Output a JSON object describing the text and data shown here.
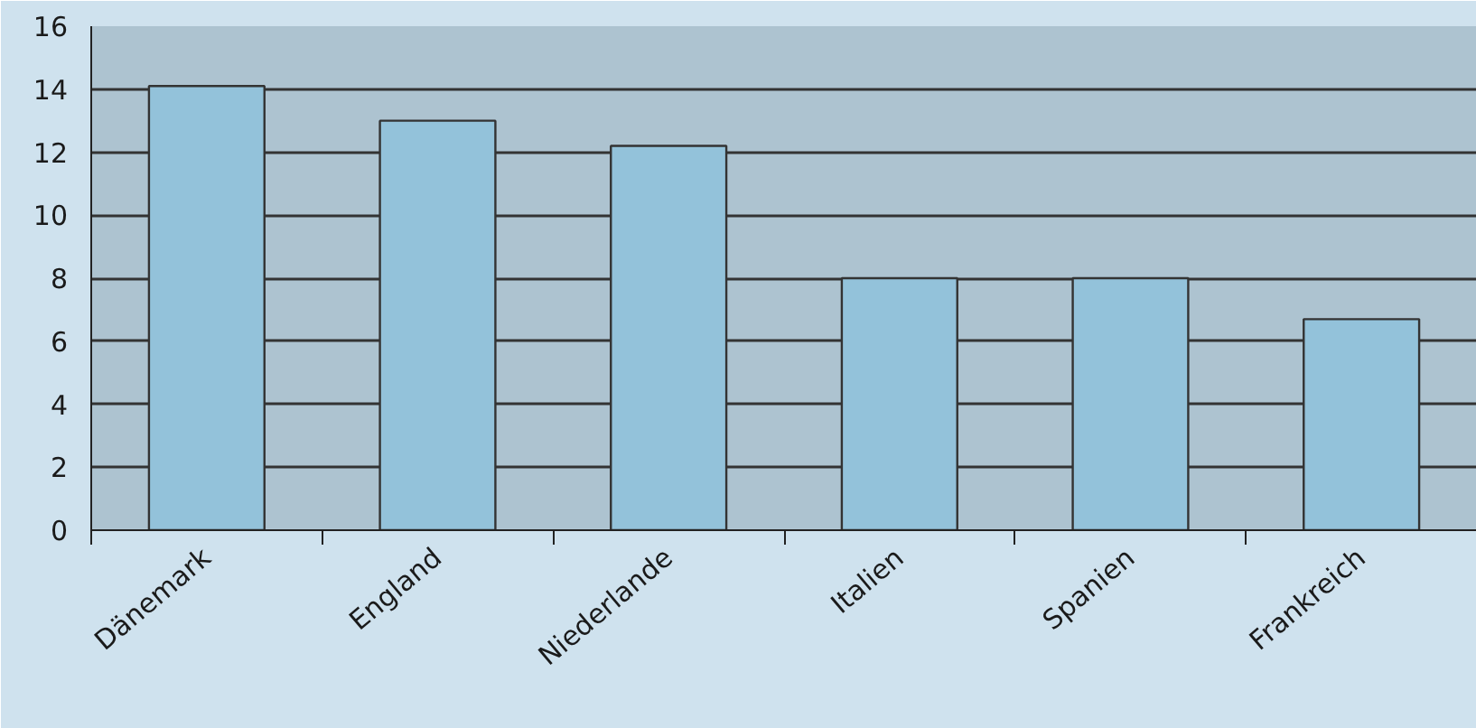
{
  "chart_data": {
    "type": "bar",
    "categories": [
      "Dänemark",
      "England",
      "Niederlande",
      "Italien",
      "Spanien",
      "Frankreich"
    ],
    "values": [
      14.1,
      13.0,
      12.2,
      8.0,
      8.0,
      6.7
    ],
    "color": "#93c2da",
    "ylim": [
      0,
      16
    ],
    "yticks": [
      0,
      2,
      4,
      6,
      8,
      10,
      12,
      14,
      16
    ],
    "grid": "y"
  }
}
